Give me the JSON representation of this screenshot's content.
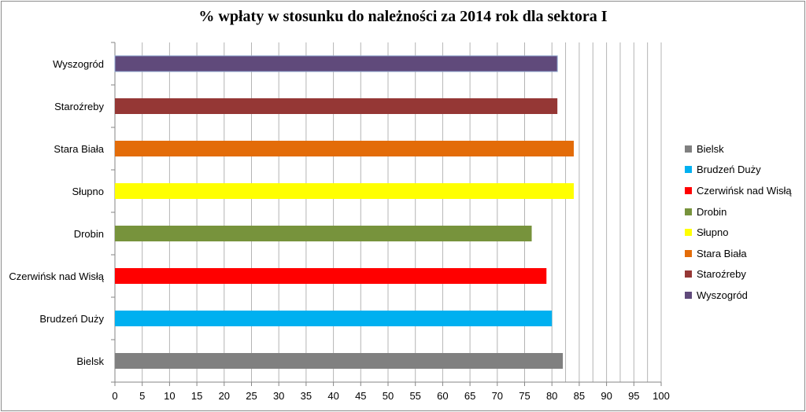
{
  "chart_data": {
    "type": "bar",
    "orientation": "horizontal",
    "title": "% wpłaty w stosunku do należności za 2014 rok dla sektora I",
    "categories": [
      "Bielsk",
      "Brudzeń Duży",
      "Czerwińsk nad Wisłą",
      "Drobin",
      "Słupno",
      "Stara Biała",
      "Staroźreby",
      "Wyszogród"
    ],
    "values": [
      82,
      80,
      79,
      76.3,
      84,
      84,
      81,
      81
    ],
    "colors": [
      "#808080",
      "#00b0f0",
      "#ff0000",
      "#77933c",
      "#ffff00",
      "#e36c09",
      "#953735",
      "#604a7b"
    ],
    "xlim": [
      0,
      100
    ],
    "xticks": [
      "0",
      "5",
      "10",
      "15",
      "20",
      "25",
      "30",
      "35",
      "40",
      "45",
      "50",
      "55",
      "60",
      "65",
      "70",
      "75",
      "80",
      "85",
      "90",
      "95",
      "100"
    ],
    "grid": "vertical lines at every 5",
    "legend": {
      "position": "right",
      "entries": [
        "Bielsk",
        "Brudzeń Duży",
        "Czerwińsk nad Wisłą",
        "Drobin",
        "Słupno",
        "Stara Biała",
        "Staroźreby",
        "Wyszogród"
      ]
    }
  }
}
